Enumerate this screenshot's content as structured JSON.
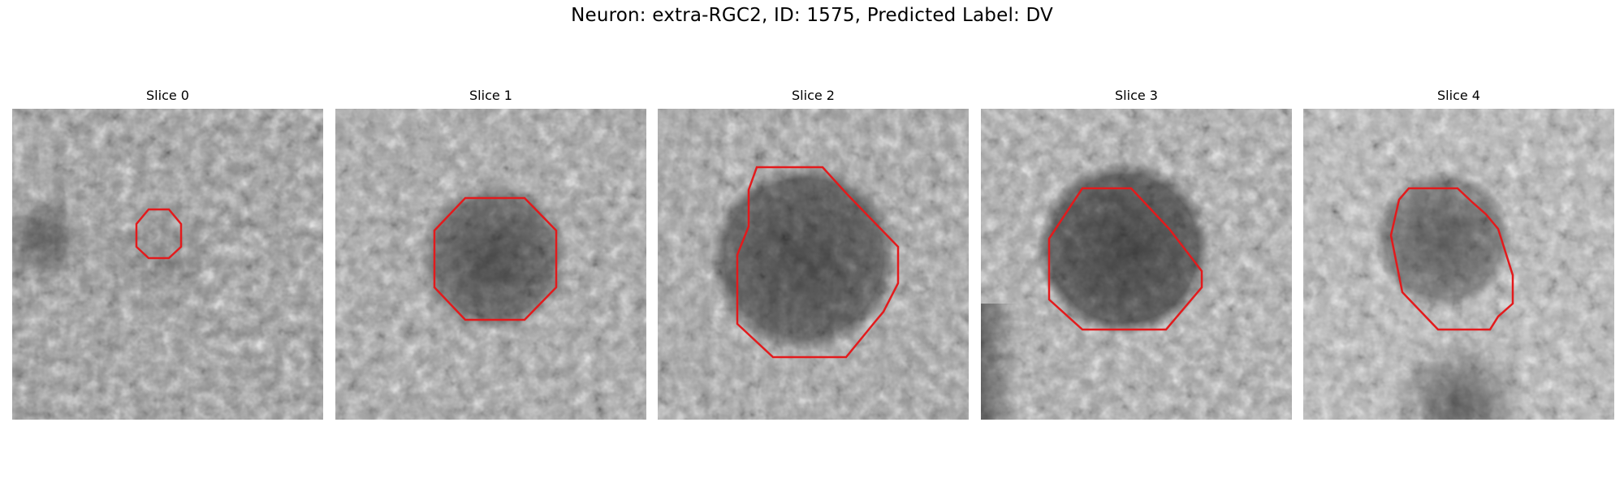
{
  "title": "Neuron: extra-RGC2, ID: 1575, Predicted Label: DV",
  "slices": [
    {
      "label": "Slice 0"
    },
    {
      "label": "Slice 1"
    },
    {
      "label": "Slice 2"
    },
    {
      "label": "Slice 3"
    },
    {
      "label": "Slice 4"
    }
  ],
  "contour_color": "#e31a1c",
  "image_colormap": "grayscale"
}
